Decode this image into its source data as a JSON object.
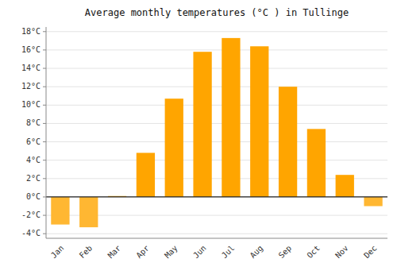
{
  "chart_data": {
    "type": "bar",
    "title": "Average monthly temperatures (°C ) in Tullinge",
    "categories": [
      "Jan",
      "Feb",
      "Mar",
      "Apr",
      "May",
      "Jun",
      "Jul",
      "Aug",
      "Sep",
      "Oct",
      "Nov",
      "Dec"
    ],
    "values": [
      -3.0,
      -3.3,
      0.1,
      4.8,
      10.7,
      15.8,
      17.3,
      16.4,
      12.0,
      7.4,
      2.4,
      -1.0
    ],
    "colors": [
      "#FFB732",
      "#FFB732",
      "#FFA500",
      "#FFA500",
      "#FFA500",
      "#FFA500",
      "#FFA500",
      "#FFA500",
      "#FFA500",
      "#FFA500",
      "#FFA500",
      "#FFB732"
    ],
    "ylim": [
      -4.5,
      18.5
    ],
    "yticks": [
      {
        "value": -4,
        "label": "-4°C"
      },
      {
        "value": -2,
        "label": "-2°C"
      },
      {
        "value": 0,
        "label": "0°C"
      },
      {
        "value": 2,
        "label": "2°C"
      },
      {
        "value": 4,
        "label": "4°C"
      },
      {
        "value": 6,
        "label": "6°C"
      },
      {
        "value": 8,
        "label": "8°C"
      },
      {
        "value": 10,
        "label": "10°C"
      },
      {
        "value": 12,
        "label": "12°C"
      },
      {
        "value": 14,
        "label": "14°C"
      },
      {
        "value": 16,
        "label": "16°C"
      },
      {
        "value": 18,
        "label": "18°C"
      }
    ],
    "grid": true
  }
}
